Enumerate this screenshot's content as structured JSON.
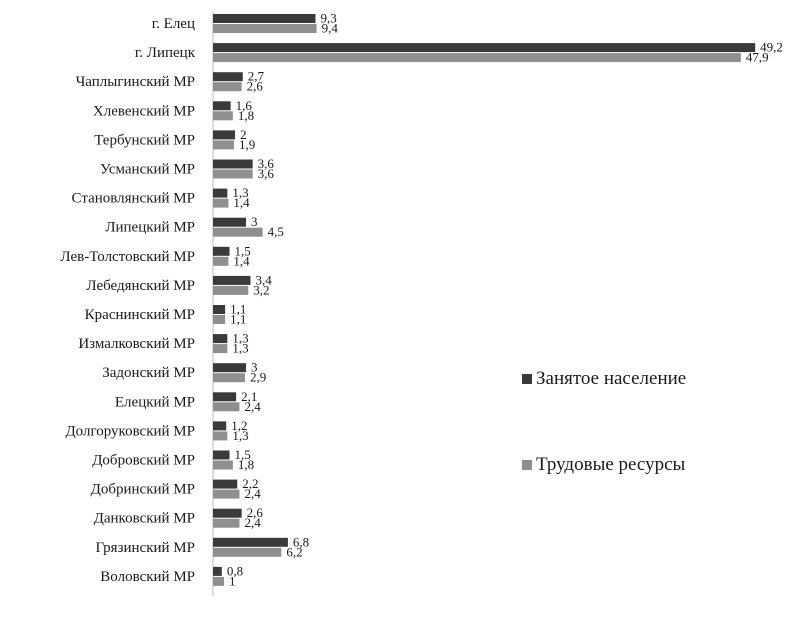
{
  "chart_data": {
    "type": "bar",
    "orientation": "horizontal",
    "title": "",
    "xlabel": "",
    "ylabel": "",
    "grid": false,
    "legend_placement": "right",
    "categories": [
      "г. Елец",
      "г. Липецк",
      "Чаплыгинский МР",
      "Хлевенский МР",
      "Тербунский МР",
      "Усманский МР",
      "Становлянский МР",
      "Липецкий МР",
      "Лев-Толстовский МР",
      "Лебедянский МР",
      "Краснинский МР",
      "Измалковский МР",
      "Задонский МР",
      "Елецкий МР",
      "Долгоруковский МР",
      "Добровский МР",
      "Добринский МР",
      "Данковский МР",
      "Грязинский МР",
      "Воловский МР"
    ],
    "series": [
      {
        "name": "Занятое население",
        "color": "#3a3a3a",
        "values": [
          9.3,
          49.2,
          2.7,
          1.6,
          2,
          3.6,
          1.3,
          3,
          1.5,
          3.4,
          1.1,
          1.3,
          3,
          2.1,
          1.2,
          1.5,
          2.2,
          2.6,
          6.8,
          0.8
        ],
        "labels": [
          "9,3",
          "49,2",
          "2,7",
          "1,6",
          "2",
          "3,6",
          "1,3",
          "3",
          "1,5",
          "3,4",
          "1,1",
          "1,3",
          "3",
          "2,1",
          "1,2",
          "1,5",
          "2,2",
          "2,6",
          "6,8",
          "0,8"
        ]
      },
      {
        "name": "Трудовые ресурсы",
        "color": "#8f8f8f",
        "values": [
          9.4,
          47.9,
          2.6,
          1.8,
          1.9,
          3.6,
          1.4,
          4.5,
          1.4,
          3.2,
          1.1,
          1.3,
          2.9,
          2.4,
          1.3,
          1.8,
          2.4,
          2.4,
          6.2,
          1
        ],
        "labels": [
          "9,4",
          "47,9",
          "2,6",
          "1,8",
          "1,9",
          "3,6",
          "1,4",
          "4,5",
          "1,4",
          "3,2",
          "1,1",
          "1,3",
          "2,9",
          "2,4",
          "1,3",
          "1,8",
          "2,4",
          "2,4",
          "6,2",
          "1"
        ]
      }
    ],
    "xlim": [
      0,
      50
    ]
  }
}
